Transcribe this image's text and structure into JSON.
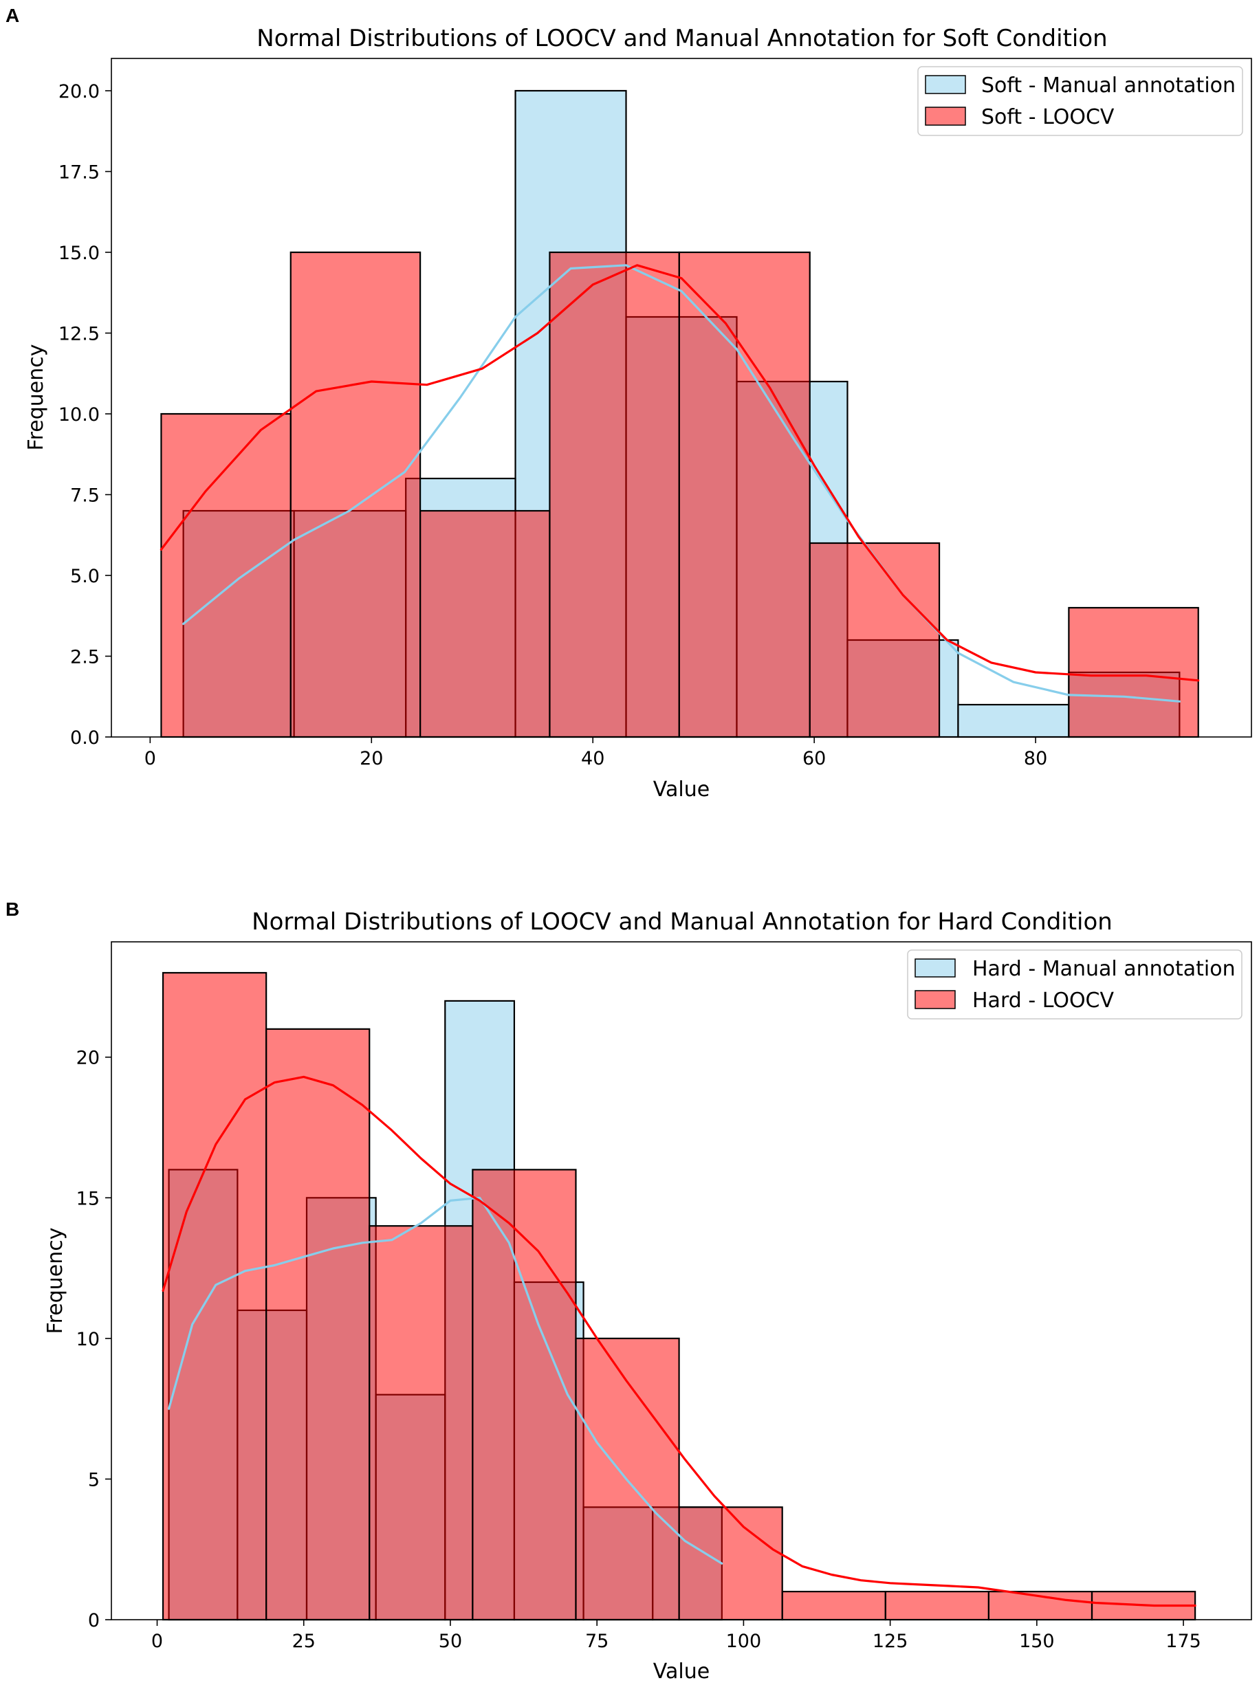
{
  "chart_data": [
    {
      "panel": "A",
      "type": "histogram",
      "title": "Normal Distributions of LOOCV and Manual Annotation for Soft Condition",
      "xlabel": "Value",
      "ylabel": "Frequency",
      "xlim": [
        -3.5,
        99.5
      ],
      "ylim": [
        0,
        21
      ],
      "xticks": [
        0,
        20,
        40,
        60,
        80
      ],
      "yticks": [
        0.0,
        2.5,
        5.0,
        7.5,
        10.0,
        12.5,
        15.0,
        17.5,
        20.0
      ],
      "ytick_labels": [
        "0.0",
        "2.5",
        "5.0",
        "7.5",
        "10.0",
        "12.5",
        "15.0",
        "17.5",
        "20.0"
      ],
      "legend": {
        "position": "top-right",
        "entries": [
          "Soft - Manual annotation",
          "Soft - LOOCV"
        ]
      },
      "series": [
        {
          "name": "Soft - Manual annotation",
          "color": "#87ceeb",
          "bins": [
            {
              "x0": 3.0,
              "x1": 13.0,
              "count": 7
            },
            {
              "x0": 13.0,
              "x1": 23.1,
              "count": 7
            },
            {
              "x0": 23.1,
              "x1": 33.0,
              "count": 8
            },
            {
              "x0": 33.0,
              "x1": 43.0,
              "count": 20
            },
            {
              "x0": 43.0,
              "x1": 53.0,
              "count": 13
            },
            {
              "x0": 53.0,
              "x1": 63.0,
              "count": 11
            },
            {
              "x0": 63.0,
              "x1": 73.0,
              "count": 3
            },
            {
              "x0": 73.0,
              "x1": 83.0,
              "count": 1
            },
            {
              "x0": 83.0,
              "x1": 93.0,
              "count": 2
            }
          ],
          "kde": [
            [
              3,
              3.5
            ],
            [
              8,
              4.9
            ],
            [
              13,
              6.1
            ],
            [
              18,
              7.0
            ],
            [
              23,
              8.2
            ],
            [
              28,
              10.5
            ],
            [
              33,
              13.0
            ],
            [
              38,
              14.5
            ],
            [
              43,
              14.6
            ],
            [
              48,
              13.8
            ],
            [
              53,
              12.0
            ],
            [
              58,
              9.3
            ],
            [
              63,
              6.7
            ],
            [
              68,
              4.4
            ],
            [
              73,
              2.6
            ],
            [
              78,
              1.7
            ],
            [
              83,
              1.3
            ],
            [
              88,
              1.25
            ],
            [
              93,
              1.1
            ]
          ]
        },
        {
          "name": "Soft - LOOCV",
          "color": "#ff0000",
          "bins": [
            {
              "x0": 1.0,
              "x1": 12.7,
              "count": 10
            },
            {
              "x0": 12.7,
              "x1": 24.4,
              "count": 15
            },
            {
              "x0": 24.4,
              "x1": 36.1,
              "count": 7
            },
            {
              "x0": 36.1,
              "x1": 47.8,
              "count": 15
            },
            {
              "x0": 47.8,
              "x1": 59.6,
              "count": 15
            },
            {
              "x0": 59.6,
              "x1": 71.3,
              "count": 6
            },
            {
              "x0": 71.3,
              "x1": 83.0,
              "count": 0
            },
            {
              "x0": 83.0,
              "x1": 94.7,
              "count": 4
            }
          ],
          "kde": [
            [
              1,
              5.8
            ],
            [
              5,
              7.6
            ],
            [
              10,
              9.5
            ],
            [
              15,
              10.7
            ],
            [
              20,
              11.0
            ],
            [
              25,
              10.9
            ],
            [
              30,
              11.4
            ],
            [
              35,
              12.5
            ],
            [
              40,
              14.0
            ],
            [
              44,
              14.6
            ],
            [
              48,
              14.2
            ],
            [
              52,
              12.8
            ],
            [
              56,
              10.8
            ],
            [
              60,
              8.4
            ],
            [
              64,
              6.2
            ],
            [
              68,
              4.4
            ],
            [
              72,
              3.0
            ],
            [
              76,
              2.3
            ],
            [
              80,
              2.0
            ],
            [
              85,
              1.9
            ],
            [
              90,
              1.9
            ],
            [
              94.7,
              1.75
            ]
          ]
        }
      ]
    },
    {
      "panel": "B",
      "type": "histogram",
      "title": "Normal Distributions of LOOCV and Manual Annotation for Hard Condition",
      "xlabel": "Value",
      "ylabel": "Frequency",
      "xlim": [
        -7.8,
        186.6
      ],
      "ylim": [
        0,
        24.1
      ],
      "xticks": [
        0,
        25,
        50,
        75,
        100,
        125,
        150,
        175
      ],
      "yticks": [
        0,
        5,
        10,
        15,
        20
      ],
      "ytick_labels": [
        "0",
        "5",
        "10",
        "15",
        "20"
      ],
      "legend": {
        "position": "top-right",
        "entries": [
          "Hard - Manual annotation",
          "Hard - LOOCV"
        ]
      },
      "series": [
        {
          "name": "Hard - Manual annotation",
          "color": "#87ceeb",
          "bins": [
            {
              "x0": 2.0,
              "x1": 13.7,
              "count": 16
            },
            {
              "x0": 13.7,
              "x1": 25.5,
              "count": 11
            },
            {
              "x0": 25.5,
              "x1": 37.3,
              "count": 15
            },
            {
              "x0": 37.3,
              "x1": 49.1,
              "count": 8
            },
            {
              "x0": 49.1,
              "x1": 60.9,
              "count": 22
            },
            {
              "x0": 60.9,
              "x1": 72.7,
              "count": 12
            },
            {
              "x0": 72.7,
              "x1": 84.5,
              "count": 4
            },
            {
              "x0": 84.5,
              "x1": 96.3,
              "count": 4
            }
          ],
          "kde": [
            [
              2,
              7.5
            ],
            [
              6,
              10.5
            ],
            [
              10,
              11.9
            ],
            [
              15,
              12.4
            ],
            [
              20,
              12.6
            ],
            [
              25,
              12.9
            ],
            [
              30,
              13.2
            ],
            [
              35,
              13.4
            ],
            [
              40,
              13.5
            ],
            [
              45,
              14.1
            ],
            [
              50,
              14.9
            ],
            [
              55,
              15.0
            ],
            [
              60,
              13.4
            ],
            [
              65,
              10.5
            ],
            [
              70,
              8.0
            ],
            [
              75,
              6.3
            ],
            [
              80,
              5.0
            ],
            [
              85,
              3.8
            ],
            [
              90,
              2.8
            ],
            [
              96.3,
              2.0
            ]
          ]
        },
        {
          "name": "Hard - LOOCV",
          "color": "#ff0000",
          "bins": [
            {
              "x0": 1.0,
              "x1": 18.6,
              "count": 23
            },
            {
              "x0": 18.6,
              "x1": 36.2,
              "count": 21
            },
            {
              "x0": 36.2,
              "x1": 53.8,
              "count": 14
            },
            {
              "x0": 53.8,
              "x1": 71.4,
              "count": 16
            },
            {
              "x0": 71.4,
              "x1": 89.0,
              "count": 10
            },
            {
              "x0": 89.0,
              "x1": 106.6,
              "count": 4
            },
            {
              "x0": 106.6,
              "x1": 124.2,
              "count": 1
            },
            {
              "x0": 124.2,
              "x1": 141.8,
              "count": 1
            },
            {
              "x0": 141.8,
              "x1": 159.4,
              "count": 1
            },
            {
              "x0": 159.4,
              "x1": 177.0,
              "count": 1
            }
          ],
          "kde": [
            [
              1,
              11.7
            ],
            [
              5,
              14.5
            ],
            [
              10,
              16.9
            ],
            [
              15,
              18.5
            ],
            [
              20,
              19.1
            ],
            [
              25,
              19.3
            ],
            [
              30,
              19.0
            ],
            [
              35,
              18.3
            ],
            [
              40,
              17.4
            ],
            [
              45,
              16.4
            ],
            [
              50,
              15.5
            ],
            [
              55,
              14.9
            ],
            [
              60,
              14.1
            ],
            [
              65,
              13.1
            ],
            [
              70,
              11.6
            ],
            [
              75,
              10.0
            ],
            [
              80,
              8.5
            ],
            [
              85,
              7.1
            ],
            [
              90,
              5.7
            ],
            [
              95,
              4.4
            ],
            [
              100,
              3.3
            ],
            [
              105,
              2.5
            ],
            [
              110,
              1.9
            ],
            [
              115,
              1.6
            ],
            [
              120,
              1.4
            ],
            [
              125,
              1.3
            ],
            [
              130,
              1.25
            ],
            [
              135,
              1.2
            ],
            [
              140,
              1.15
            ],
            [
              145,
              1.0
            ],
            [
              150,
              0.85
            ],
            [
              155,
              0.7
            ],
            [
              160,
              0.6
            ],
            [
              165,
              0.55
            ],
            [
              170,
              0.5
            ],
            [
              177,
              0.5
            ]
          ]
        }
      ]
    }
  ]
}
